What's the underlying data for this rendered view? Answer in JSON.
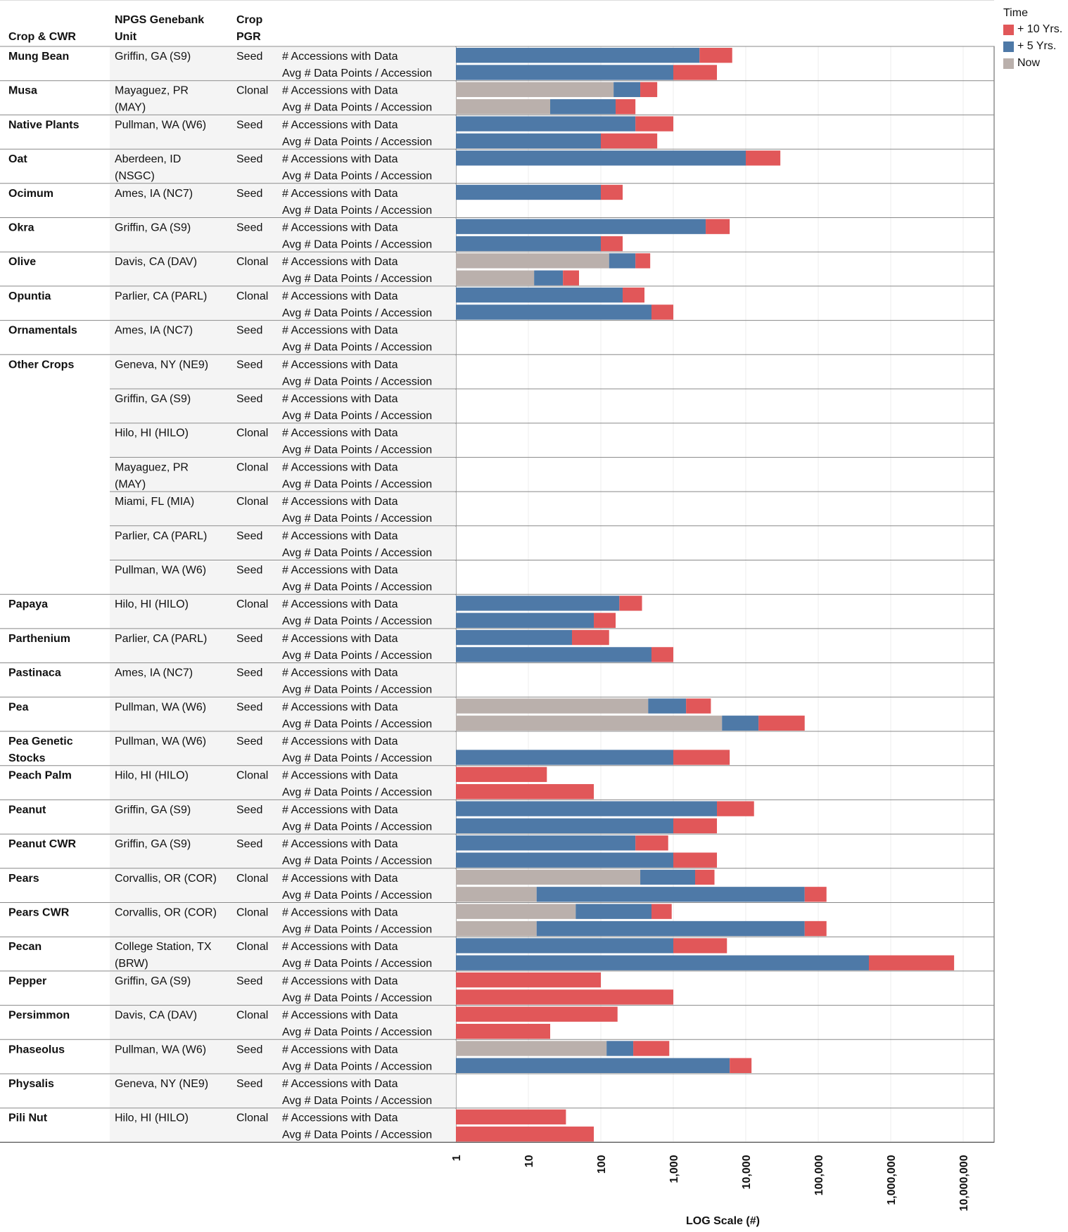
{
  "headers": {
    "crop": "Crop & CWR",
    "unit_line1": "NPGS Genebank",
    "unit_line2": "Unit",
    "pgr_line1": "Crop",
    "pgr_line2": "PGR"
  },
  "legend": {
    "title": "Time",
    "items": [
      {
        "label": "+ 10 Yrs.",
        "color": "#e15759"
      },
      {
        "label": "+ 5 Yrs.",
        "color": "#4e79a7"
      },
      {
        "label": "Now",
        "color": "#bab0ac"
      }
    ]
  },
  "chart_data": {
    "type": "bar",
    "orientation": "horizontal",
    "stacked": true,
    "x_scale": "log",
    "xlim": [
      1,
      20000000
    ],
    "xlabel": "LOG Scale (#)",
    "x_ticks": [
      {
        "value": 1,
        "label": "1"
      },
      {
        "value": 10,
        "label": "10"
      },
      {
        "value": 100,
        "label": "100"
      },
      {
        "value": 1000,
        "label": "1,000"
      },
      {
        "value": 10000,
        "label": "10,000"
      },
      {
        "value": 100000,
        "label": "100,000"
      },
      {
        "value": 1000000,
        "label": "1,000,000"
      },
      {
        "value": 10000000,
        "label": "10,000,000"
      }
    ],
    "measures": [
      "# Accessions with Data",
      "Avg # Data Points / Accession"
    ],
    "series": [
      {
        "name": "Now",
        "color": "#bab0ac"
      },
      {
        "name": "+ 5 Yrs.",
        "color": "#4e79a7"
      },
      {
        "name": "+ 10 Yrs.",
        "color": "#e15759"
      }
    ],
    "rows": [
      {
        "crop": "Mung Bean",
        "unit": [
          "Griffin, GA (S9)"
        ],
        "pgr": "Seed",
        "accessions": {
          "now": null,
          "y5": 2300,
          "y10": 6500
        },
        "avg_points": {
          "now": null,
          "y5": 1000,
          "y10": 4000
        }
      },
      {
        "crop": "Musa",
        "unit": [
          "Mayaguez, PR",
          "(MAY)"
        ],
        "pgr": "Clonal",
        "accessions": {
          "now": 150,
          "y5": 350,
          "y10": 600
        },
        "avg_points": {
          "now": 20,
          "y5": 160,
          "y10": 300
        }
      },
      {
        "crop": "Native Plants",
        "unit": [
          "Pullman, WA (W6)"
        ],
        "pgr": "Seed",
        "accessions": {
          "now": null,
          "y5": 300,
          "y10": 1000
        },
        "avg_points": {
          "now": null,
          "y5": 100,
          "y10": 600
        }
      },
      {
        "crop": "Oat",
        "unit": [
          "Aberdeen, ID",
          "(NSGC)"
        ],
        "pgr": "Seed",
        "accessions": {
          "now": null,
          "y5": 10000,
          "y10": 30000
        },
        "avg_points": {
          "now": null,
          "y5": null,
          "y10": null
        }
      },
      {
        "crop": "Ocimum",
        "unit": [
          "Ames, IA (NC7)"
        ],
        "pgr": "Seed",
        "accessions": {
          "now": null,
          "y5": 100,
          "y10": 200
        },
        "avg_points": {
          "now": null,
          "y5": null,
          "y10": null
        }
      },
      {
        "crop": "Okra",
        "unit": [
          "Griffin, GA (S9)"
        ],
        "pgr": "Seed",
        "accessions": {
          "now": null,
          "y5": 2800,
          "y10": 6000
        },
        "avg_points": {
          "now": null,
          "y5": 100,
          "y10": 200
        }
      },
      {
        "crop": "Olive",
        "unit": [
          "Davis, CA (DAV)"
        ],
        "pgr": "Clonal",
        "accessions": {
          "now": 130,
          "y5": 300,
          "y10": 480
        },
        "avg_points": {
          "now": 12,
          "y5": 30,
          "y10": 50
        }
      },
      {
        "crop": "Opuntia",
        "unit": [
          "Parlier, CA (PARL)"
        ],
        "pgr": "Clonal",
        "accessions": {
          "now": null,
          "y5": 200,
          "y10": 400
        },
        "avg_points": {
          "now": null,
          "y5": 500,
          "y10": 1000
        }
      },
      {
        "crop": "Ornamentals",
        "unit": [
          "Ames, IA (NC7)"
        ],
        "pgr": "Seed",
        "accessions": {
          "now": null,
          "y5": null,
          "y10": null
        },
        "avg_points": {
          "now": null,
          "y5": null,
          "y10": null
        }
      },
      {
        "crop": "Other Crops",
        "unit": [
          "Geneva, NY (NE9)"
        ],
        "pgr": "Seed",
        "accessions": {
          "now": null,
          "y5": null,
          "y10": null
        },
        "avg_points": {
          "now": null,
          "y5": null,
          "y10": null
        }
      },
      {
        "crop": "",
        "unit": [
          "Griffin, GA (S9)"
        ],
        "pgr": "Seed",
        "accessions": {
          "now": null,
          "y5": null,
          "y10": null
        },
        "avg_points": {
          "now": null,
          "y5": null,
          "y10": null
        }
      },
      {
        "crop": "",
        "unit": [
          "Hilo, HI (HILO)"
        ],
        "pgr": "Clonal",
        "accessions": {
          "now": null,
          "y5": null,
          "y10": null
        },
        "avg_points": {
          "now": null,
          "y5": null,
          "y10": null
        }
      },
      {
        "crop": "",
        "unit": [
          "Mayaguez, PR",
          "(MAY)"
        ],
        "pgr": "Clonal",
        "accessions": {
          "now": null,
          "y5": null,
          "y10": null
        },
        "avg_points": {
          "now": null,
          "y5": null,
          "y10": null
        }
      },
      {
        "crop": "",
        "unit": [
          "Miami, FL (MIA)"
        ],
        "pgr": "Clonal",
        "accessions": {
          "now": null,
          "y5": null,
          "y10": null
        },
        "avg_points": {
          "now": null,
          "y5": null,
          "y10": null
        }
      },
      {
        "crop": "",
        "unit": [
          "Parlier, CA (PARL)"
        ],
        "pgr": "Seed",
        "accessions": {
          "now": null,
          "y5": null,
          "y10": null
        },
        "avg_points": {
          "now": null,
          "y5": null,
          "y10": null
        }
      },
      {
        "crop": "",
        "unit": [
          "Pullman, WA (W6)"
        ],
        "pgr": "Seed",
        "accessions": {
          "now": null,
          "y5": null,
          "y10": null
        },
        "avg_points": {
          "now": null,
          "y5": null,
          "y10": null
        }
      },
      {
        "crop": "Papaya",
        "unit": [
          "Hilo, HI (HILO)"
        ],
        "pgr": "Clonal",
        "accessions": {
          "now": null,
          "y5": 180,
          "y10": 370
        },
        "avg_points": {
          "now": null,
          "y5": 80,
          "y10": 160
        }
      },
      {
        "crop": "Parthenium",
        "unit": [
          "Parlier, CA (PARL)"
        ],
        "pgr": "Seed",
        "accessions": {
          "now": null,
          "y5": 40,
          "y10": 130
        },
        "avg_points": {
          "now": null,
          "y5": 500,
          "y10": 1000
        }
      },
      {
        "crop": "Pastinaca",
        "unit": [
          "Ames, IA (NC7)"
        ],
        "pgr": "Seed",
        "accessions": {
          "now": null,
          "y5": null,
          "y10": null
        },
        "avg_points": {
          "now": null,
          "y5": null,
          "y10": null
        }
      },
      {
        "crop": "Pea",
        "unit": [
          "Pullman, WA (W6)"
        ],
        "pgr": "Seed",
        "accessions": {
          "now": 450,
          "y5": 1500,
          "y10": 3300
        },
        "avg_points": {
          "now": 4700,
          "y5": 15000,
          "y10": 65000
        }
      },
      {
        "crop": "Pea Genetic Stocks",
        "unit": [
          "Pullman, WA (W6)"
        ],
        "pgr": "Seed",
        "accessions": {
          "now": null,
          "y5": null,
          "y10": null
        },
        "avg_points": {
          "now": null,
          "y5": 1000,
          "y10": 6000
        }
      },
      {
        "crop": "Peach Palm",
        "unit": [
          "Hilo, HI (HILO)"
        ],
        "pgr": "Clonal",
        "accessions": {
          "now": null,
          "y5": null,
          "y10": 18
        },
        "avg_points": {
          "now": null,
          "y5": null,
          "y10": 80
        }
      },
      {
        "crop": "Peanut",
        "unit": [
          "Griffin, GA (S9)"
        ],
        "pgr": "Seed",
        "accessions": {
          "now": null,
          "y5": 4000,
          "y10": 13000
        },
        "avg_points": {
          "now": null,
          "y5": 1000,
          "y10": 4000
        }
      },
      {
        "crop": "Peanut CWR",
        "unit": [
          "Griffin, GA (S9)"
        ],
        "pgr": "Seed",
        "accessions": {
          "now": null,
          "y5": 300,
          "y10": 850
        },
        "avg_points": {
          "now": null,
          "y5": 1000,
          "y10": 4000
        }
      },
      {
        "crop": "Pears",
        "unit": [
          "Corvallis, OR (COR)"
        ],
        "pgr": "Clonal",
        "accessions": {
          "now": 350,
          "y5": 2000,
          "y10": 3700
        },
        "avg_points": {
          "now": 13,
          "y5": 65000,
          "y10": 130000
        }
      },
      {
        "crop": "Pears CWR",
        "unit": [
          "Corvallis, OR (COR)"
        ],
        "pgr": "Clonal",
        "accessions": {
          "now": 45,
          "y5": 500,
          "y10": 950
        },
        "avg_points": {
          "now": 13,
          "y5": 65000,
          "y10": 130000
        }
      },
      {
        "crop": "Pecan",
        "unit": [
          "College Station, TX",
          "(BRW)"
        ],
        "pgr": "Clonal",
        "accessions": {
          "now": null,
          "y5": 1000,
          "y10": 5500
        },
        "avg_points": {
          "now": null,
          "y5": 500000,
          "y10": 7500000
        }
      },
      {
        "crop": "Pepper",
        "unit": [
          "Griffin, GA (S9)"
        ],
        "pgr": "Seed",
        "accessions": {
          "now": null,
          "y5": null,
          "y10": 100
        },
        "avg_points": {
          "now": null,
          "y5": null,
          "y10": 1000
        }
      },
      {
        "crop": "Persimmon",
        "unit": [
          "Davis, CA (DAV)"
        ],
        "pgr": "Clonal",
        "accessions": {
          "now": null,
          "y5": null,
          "y10": 170
        },
        "avg_points": {
          "now": null,
          "y5": null,
          "y10": 20
        }
      },
      {
        "crop": "Phaseolus",
        "unit": [
          "Pullman, WA (W6)"
        ],
        "pgr": "Seed",
        "accessions": {
          "now": 120,
          "y5": 280,
          "y10": 880
        },
        "avg_points": {
          "now": null,
          "y5": 6000,
          "y10": 12000
        }
      },
      {
        "crop": "Physalis",
        "unit": [
          "Geneva, NY (NE9)"
        ],
        "pgr": "Seed",
        "accessions": {
          "now": null,
          "y5": null,
          "y10": null
        },
        "avg_points": {
          "now": null,
          "y5": null,
          "y10": null
        }
      },
      {
        "crop": "Pili Nut",
        "unit": [
          "Hilo, HI (HILO)"
        ],
        "pgr": "Clonal",
        "accessions": {
          "now": null,
          "y5": null,
          "y10": 33
        },
        "avg_points": {
          "now": null,
          "y5": null,
          "y10": 80
        }
      }
    ]
  }
}
